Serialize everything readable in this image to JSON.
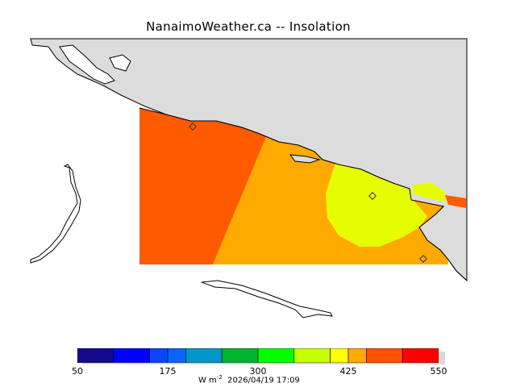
{
  "header": {
    "title": "NanaimoWeather.ca -- Insolation"
  },
  "colorbar": {
    "colors": [
      "#140a8c",
      "#0000ff",
      "#0a46ff",
      "#0a64ff",
      "#0096c8",
      "#00b432",
      "#00ff00",
      "#c8ff00",
      "#ffff00",
      "#ffaa00",
      "#ff5000",
      "#ff0000"
    ],
    "boundaries": [
      50,
      100,
      150,
      175,
      200,
      250,
      300,
      350,
      400,
      425,
      450,
      500,
      550
    ],
    "tick_labels": [
      "50",
      "175",
      "300",
      "425",
      "550"
    ],
    "units_main": "W m",
    "units_exp": "-2",
    "timestamp": "2026/04/19 17:09"
  },
  "map": {
    "land_color": "#dcdcdc",
    "zones": [
      {
        "name": "zone-orange-red",
        "color": "#ff5a00"
      },
      {
        "name": "zone-orange",
        "color": "#ffaa00"
      },
      {
        "name": "zone-yellow",
        "color": "#e6ff00"
      }
    ]
  }
}
